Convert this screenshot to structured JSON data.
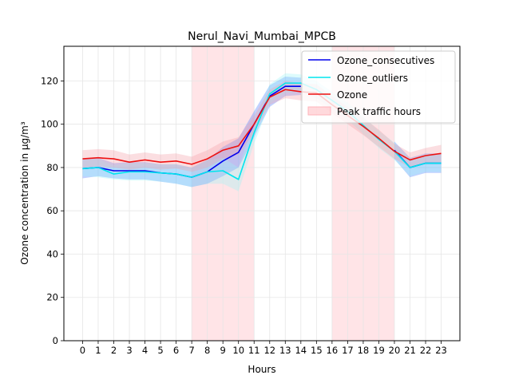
{
  "chart_data": {
    "type": "line",
    "title": "Nerul_Navi_Mumbai_MPCB",
    "xlabel": "Hours",
    "ylabel": "Ozone concentration in µg/m³",
    "x": [
      0,
      1,
      2,
      3,
      4,
      5,
      6,
      7,
      8,
      9,
      10,
      11,
      12,
      13,
      14,
      15,
      16,
      17,
      18,
      19,
      20,
      21,
      22,
      23
    ],
    "xticklabels": [
      "0",
      "1",
      "2",
      "3",
      "4",
      "5",
      "6",
      "7",
      "8",
      "9",
      "10",
      "11",
      "12",
      "13",
      "14",
      "15",
      "16",
      "17",
      "18",
      "19",
      "20",
      "21",
      "22",
      "23"
    ],
    "xlim": [
      -1.2,
      24.2
    ],
    "ylim": [
      0,
      136
    ],
    "yticks": [
      0,
      20,
      40,
      60,
      80,
      100,
      120
    ],
    "grid": true,
    "legend_position": "top-right",
    "shaded_regions": [
      {
        "label": "Peak traffic hours",
        "x_start": 7,
        "x_end": 11,
        "color": "#ffb3ba"
      },
      {
        "label": "",
        "x_start": 16,
        "x_end": 20,
        "color": "#ffb3ba"
      }
    ],
    "series": [
      {
        "name": "Ozone_consecutives",
        "color": "#0000ee",
        "values": [
          79.5,
          80,
          78.5,
          78.5,
          78.5,
          77.5,
          77,
          75.5,
          78,
          83,
          87,
          100,
          113,
          117.5,
          117.5,
          null,
          null,
          null,
          null,
          null,
          88,
          80,
          82,
          82
        ],
        "lower": [
          75,
          76,
          75,
          74.5,
          74.5,
          73.5,
          72.5,
          71,
          72.5,
          76,
          80,
          94,
          108,
          113,
          113.5,
          null,
          null,
          null,
          null,
          null,
          84,
          75.5,
          77.5,
          77.5
        ],
        "upper": [
          84,
          84.5,
          82,
          82.5,
          82.5,
          81.5,
          81.5,
          80,
          83.5,
          89.5,
          93.5,
          106,
          118,
          122,
          121.5,
          null,
          null,
          null,
          null,
          null,
          92,
          84.5,
          86.5,
          86.5
        ],
        "band_color": "#4a7bff"
      },
      {
        "name": "Ozone_outliers",
        "color": "#00e5ee",
        "values": [
          79.5,
          80,
          77,
          78,
          78,
          77.5,
          77,
          75.5,
          78,
          78.5,
          74.5,
          96,
          114,
          119,
          119,
          116,
          111,
          106,
          99.5,
          93,
          87.5,
          80,
          82,
          82
        ],
        "lower": [
          76,
          75.5,
          74.5,
          74,
          74,
          73.5,
          72.5,
          71,
          72.5,
          72.5,
          69,
          91,
          109.5,
          114.5,
          115,
          112,
          107,
          102,
          95.5,
          89,
          83.5,
          76,
          78,
          78
        ],
        "upper": [
          83.5,
          84,
          81,
          82,
          82,
          81.5,
          81.5,
          80,
          83.5,
          84.5,
          80,
          101,
          118.5,
          123.5,
          123,
          120,
          115,
          110,
          103.5,
          97,
          91.5,
          84,
          86,
          86
        ],
        "band_color": "#9ff4f7"
      },
      {
        "name": "Ozone",
        "color": "#ee1111",
        "values": [
          84,
          84.5,
          84,
          82.5,
          83.5,
          82.5,
          83,
          81.5,
          84,
          88,
          90,
          100,
          112.5,
          116,
          115,
          114.5,
          109,
          104,
          99,
          93.5,
          87.5,
          83.5,
          85.5,
          86.5
        ],
        "lower": [
          80,
          80.5,
          80,
          79,
          80,
          79,
          79.5,
          78,
          80,
          84,
          86,
          96,
          109,
          112,
          111,
          110.5,
          105,
          100,
          95,
          89.5,
          84,
          80,
          82,
          82.5
        ],
        "upper": [
          88,
          88.5,
          88,
          86,
          87,
          86,
          86.5,
          85,
          88,
          92,
          94,
          104,
          116,
          120,
          119,
          118.5,
          113,
          108,
          103,
          97.5,
          91,
          87,
          89,
          90.5
        ],
        "band_color": "#f4a0a8"
      }
    ]
  }
}
